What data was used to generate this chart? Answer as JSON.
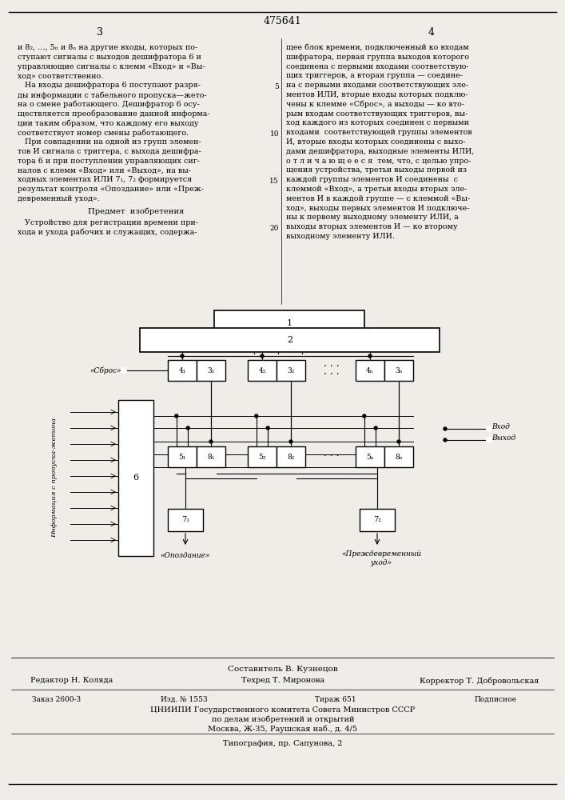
{
  "patent_number": "475641",
  "page_left": "3",
  "page_right": "4",
  "bg_color": "#f0ede8",
  "bottom_composer": "Составитель В. Кузнецов",
  "bottom_editor": "Редактор Н. Коляда",
  "bottom_tech": "Техред Т. Миронова",
  "bottom_corrector": "Корректор Т. Добровольская",
  "bottom_order": "Заказ 2600-3",
  "bottom_izd": "Изд. № 1553",
  "bottom_tirazh": "Тираж 651",
  "bottom_podpisnoe": "Подписное",
  "bottom_cniip": "ЦНИИПИ Государственного комитета Совета Министров СССР",
  "bottom_po_delam": "по делам изобретений и открытий",
  "bottom_address": "Москва, Ж-35, Раушская наб., д. 4/5",
  "bottom_tipografia": "Типография, пр. Сапунова, 2"
}
